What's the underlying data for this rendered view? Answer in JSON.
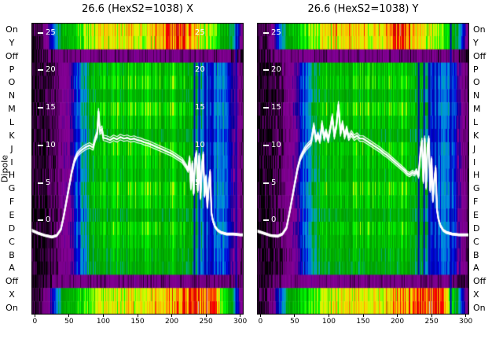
{
  "figure": {
    "ylabel": "Dipole",
    "background": "#ffffff",
    "trace_color": "#ffffff"
  },
  "chart_data": {
    "type": "heatmap",
    "x_range": [
      -5,
      305
    ],
    "y_range": [
      -12.4,
      26.3
    ],
    "xticks": [
      0,
      50,
      100,
      150,
      200,
      250,
      300
    ],
    "yticks": [
      25,
      20,
      15,
      10,
      5,
      0
    ],
    "rows": {
      "labels": [
        "On",
        "Y",
        "Off",
        "P",
        "O",
        "N",
        "M",
        "L",
        "K",
        "J",
        "I",
        "H",
        "G",
        "F",
        "E",
        "D",
        "C",
        "B",
        "A",
        "Off",
        "X",
        "On"
      ],
      "types": [
        "bright",
        "bright",
        "dark",
        "body",
        "body",
        "body",
        "body",
        "body",
        "body",
        "body",
        "body",
        "body",
        "body",
        "body",
        "body",
        "body",
        "body",
        "body",
        "body",
        "dark",
        "bright2",
        "bright2"
      ],
      "gains": [
        1.0,
        0.97,
        1.0,
        1.0,
        1.06,
        0.94,
        1.1,
        1.0,
        0.9,
        1.04,
        1.0,
        0.96,
        1.08,
        1.02,
        0.9,
        1.05,
        0.98,
        0.92,
        0.88,
        1.0,
        0.98,
        1.0
      ]
    },
    "profile_x_step": 10,
    "profiles": {
      "body": [
        0.01,
        0.01,
        0.02,
        0.03,
        0.07,
        0.1,
        0.2,
        0.3,
        0.4,
        0.47,
        0.5,
        0.48,
        0.52,
        0.49,
        0.51,
        0.5,
        0.52,
        0.49,
        0.51,
        0.5,
        0.52,
        0.5,
        0.48,
        0.46,
        0.38,
        0.25,
        0.22,
        0.3,
        0.24,
        0.12,
        0.05,
        0.01
      ],
      "bright": [
        0.02,
        0.03,
        0.1,
        0.3,
        0.45,
        0.5,
        0.55,
        0.6,
        0.66,
        0.7,
        0.72,
        0.73,
        0.72,
        0.74,
        0.73,
        0.74,
        0.72,
        0.74,
        0.76,
        0.8,
        0.85,
        0.89,
        0.8,
        0.74,
        0.72,
        0.7,
        0.62,
        0.55,
        0.48,
        0.35,
        0.1,
        0.02
      ],
      "bright2": [
        0.02,
        0.03,
        0.08,
        0.25,
        0.42,
        0.48,
        0.52,
        0.56,
        0.6,
        0.65,
        0.68,
        0.7,
        0.72,
        0.71,
        0.73,
        0.72,
        0.74,
        0.73,
        0.74,
        0.75,
        0.76,
        0.78,
        0.8,
        0.83,
        0.86,
        0.9,
        0.84,
        0.72,
        0.55,
        0.35,
        0.08,
        0.02
      ],
      "dark": [
        0.01,
        0.02,
        0.03,
        0.05,
        0.06,
        0.05,
        0.06,
        0.07,
        0.06,
        0.05,
        0.06,
        0.07,
        0.06,
        0.05,
        0.06,
        0.07,
        0.06,
        0.05,
        0.06,
        0.05,
        0.07,
        0.06,
        0.05,
        0.06,
        0.05,
        0.06,
        0.05,
        0.06,
        0.05,
        0.04,
        0.02,
        0.01
      ]
    },
    "colormap_stops": [
      [
        0.0,
        "#000000"
      ],
      [
        0.05,
        "#770088"
      ],
      [
        0.1,
        "#880099"
      ],
      [
        0.15,
        "#000099"
      ],
      [
        0.2,
        "#0000DD"
      ],
      [
        0.25,
        "#0077DD"
      ],
      [
        0.3,
        "#0099DD"
      ],
      [
        0.35,
        "#00AA88"
      ],
      [
        0.4,
        "#00AA00"
      ],
      [
        0.45,
        "#009900"
      ],
      [
        0.5,
        "#00BB00"
      ],
      [
        0.55,
        "#00DD00"
      ],
      [
        0.6,
        "#00FF00"
      ],
      [
        0.65,
        "#BBFF00"
      ],
      [
        0.7,
        "#EEEE00"
      ],
      [
        0.75,
        "#FFCC00"
      ],
      [
        0.8,
        "#FF9900"
      ],
      [
        0.85,
        "#FF0000"
      ],
      [
        0.9,
        "#DD0000"
      ],
      [
        0.95,
        "#CC0000"
      ],
      [
        1.0,
        "#CCCCCC"
      ]
    ],
    "panels": [
      {
        "title": "26.6 (HexS2=1038) X",
        "seed": 7,
        "inner_right_tick_labels": [
          25,
          20,
          15,
          10,
          5
        ],
        "stripes": [
          {
            "x": 232,
            "w": 2
          },
          {
            "x": 239,
            "w": 2
          },
          {
            "x": 247,
            "w": 3
          },
          {
            "x": 253,
            "w": 2
          },
          {
            "x": 258,
            "w": 2
          },
          {
            "x": 293,
            "w": 2,
            "full": true
          }
        ],
        "trace": [
          [
            -5,
            -1.3
          ],
          [
            5,
            -1.7
          ],
          [
            15,
            -2.0
          ],
          [
            25,
            -2.2
          ],
          [
            32,
            -2.0
          ],
          [
            38,
            -1.2
          ],
          [
            42,
            0.5
          ],
          [
            46,
            2.5
          ],
          [
            50,
            4.5
          ],
          [
            54,
            6.5
          ],
          [
            58,
            8.0
          ],
          [
            62,
            8.8
          ],
          [
            66,
            9.2
          ],
          [
            70,
            9.5
          ],
          [
            75,
            9.8
          ],
          [
            80,
            10.0
          ],
          [
            85,
            9.7
          ],
          [
            88,
            10.8
          ],
          [
            91,
            11.5
          ],
          [
            93,
            14.5
          ],
          [
            95,
            11.8
          ],
          [
            98,
            12.2
          ],
          [
            100,
            11.0
          ],
          [
            105,
            10.9
          ],
          [
            110,
            10.7
          ],
          [
            115,
            11.0
          ],
          [
            120,
            10.8
          ],
          [
            125,
            11.1
          ],
          [
            130,
            10.9
          ],
          [
            135,
            11.0
          ],
          [
            140,
            10.8
          ],
          [
            145,
            10.9
          ],
          [
            150,
            10.7
          ],
          [
            155,
            10.6
          ],
          [
            160,
            10.4
          ],
          [
            165,
            10.3
          ],
          [
            170,
            10.1
          ],
          [
            175,
            9.9
          ],
          [
            180,
            9.7
          ],
          [
            185,
            9.5
          ],
          [
            190,
            9.3
          ],
          [
            195,
            9.1
          ],
          [
            200,
            8.9
          ],
          [
            205,
            8.6
          ],
          [
            210,
            8.3
          ],
          [
            215,
            8.0
          ],
          [
            218,
            7.6
          ],
          [
            221,
            7.2
          ],
          [
            224,
            6.7
          ],
          [
            226,
            8.3
          ],
          [
            228,
            4.3
          ],
          [
            230,
            7.6
          ],
          [
            232,
            3.6
          ],
          [
            234,
            8.0
          ],
          [
            236,
            9.0
          ],
          [
            238,
            4.0
          ],
          [
            240,
            8.6
          ],
          [
            242,
            3.0
          ],
          [
            244,
            7.3
          ],
          [
            246,
            8.8
          ],
          [
            248,
            3.3
          ],
          [
            250,
            5.8
          ],
          [
            252,
            1.8
          ],
          [
            254,
            4.5
          ],
          [
            256,
            6.5
          ],
          [
            258,
            1.0
          ],
          [
            260,
            0.0
          ],
          [
            263,
            -0.8
          ],
          [
            267,
            -1.3
          ],
          [
            272,
            -1.6
          ],
          [
            280,
            -1.8
          ],
          [
            290,
            -1.8
          ],
          [
            300,
            -1.9
          ],
          [
            305,
            -1.9
          ]
        ]
      },
      {
        "title": "26.6 (HexS2=1038) Y",
        "seed": 13,
        "inner_right_tick_labels": [],
        "stripes": [
          {
            "x": 230,
            "w": 2
          },
          {
            "x": 238,
            "w": 2
          },
          {
            "x": 245,
            "w": 3
          },
          {
            "x": 252,
            "w": 2
          },
          {
            "x": 257,
            "w": 2
          },
          {
            "x": 277,
            "w": 2,
            "full": true
          }
        ],
        "trace": [
          [
            -5,
            -1.4
          ],
          [
            5,
            -1.7
          ],
          [
            15,
            -2.0
          ],
          [
            25,
            -2.1
          ],
          [
            32,
            -1.8
          ],
          [
            38,
            -1.0
          ],
          [
            42,
            0.8
          ],
          [
            46,
            2.8
          ],
          [
            50,
            4.8
          ],
          [
            54,
            6.8
          ],
          [
            58,
            8.2
          ],
          [
            62,
            9.0
          ],
          [
            66,
            9.6
          ],
          [
            70,
            10.0
          ],
          [
            74,
            10.4
          ],
          [
            78,
            12.6
          ],
          [
            81,
            10.8
          ],
          [
            84,
            11.4
          ],
          [
            87,
            10.6
          ],
          [
            90,
            12.9
          ],
          [
            93,
            11.0
          ],
          [
            96,
            11.8
          ],
          [
            99,
            10.7
          ],
          [
            102,
            12.2
          ],
          [
            105,
            13.8
          ],
          [
            108,
            11.2
          ],
          [
            111,
            12.6
          ],
          [
            114,
            15.4
          ],
          [
            117,
            11.6
          ],
          [
            120,
            12.9
          ],
          [
            123,
            11.2
          ],
          [
            126,
            12.2
          ],
          [
            129,
            11.0
          ],
          [
            133,
            11.6
          ],
          [
            137,
            11.0
          ],
          [
            141,
            11.3
          ],
          [
            145,
            10.9
          ],
          [
            150,
            10.9
          ],
          [
            155,
            10.6
          ],
          [
            160,
            10.3
          ],
          [
            165,
            10.0
          ],
          [
            170,
            9.7
          ],
          [
            175,
            9.4
          ],
          [
            180,
            9.0
          ],
          [
            185,
            8.7
          ],
          [
            190,
            8.3
          ],
          [
            195,
            7.9
          ],
          [
            200,
            7.5
          ],
          [
            205,
            7.1
          ],
          [
            210,
            6.7
          ],
          [
            214,
            6.3
          ],
          [
            218,
            6.1
          ],
          [
            222,
            6.4
          ],
          [
            225,
            6.2
          ],
          [
            228,
            6.6
          ],
          [
            231,
            5.9
          ],
          [
            234,
            9.4
          ],
          [
            236,
            10.6
          ],
          [
            238,
            5.2
          ],
          [
            240,
            10.9
          ],
          [
            242,
            4.4
          ],
          [
            244,
            9.7
          ],
          [
            246,
            10.9
          ],
          [
            248,
            4.0
          ],
          [
            250,
            8.2
          ],
          [
            252,
            2.6
          ],
          [
            254,
            5.4
          ],
          [
            256,
            7.0
          ],
          [
            258,
            1.4
          ],
          [
            260,
            0.2
          ],
          [
            263,
            -0.7
          ],
          [
            267,
            -1.3
          ],
          [
            272,
            -1.6
          ],
          [
            280,
            -1.8
          ],
          [
            290,
            -1.9
          ],
          [
            300,
            -1.9
          ],
          [
            305,
            -1.9
          ]
        ]
      }
    ]
  }
}
